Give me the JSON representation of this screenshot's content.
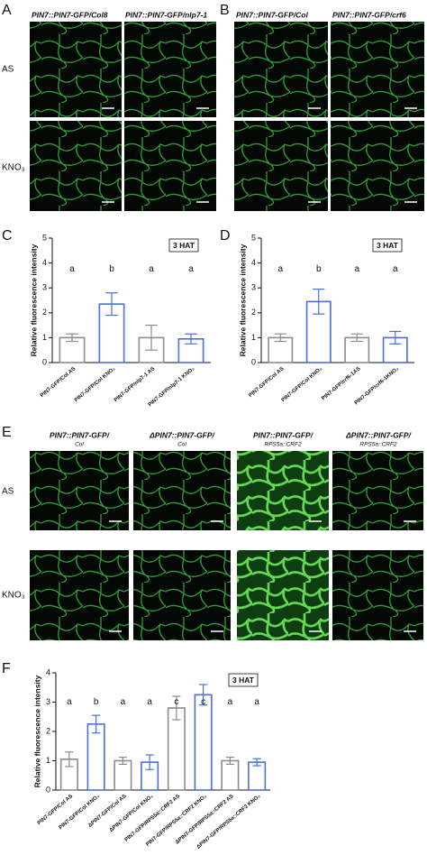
{
  "panels": {
    "A": {
      "label": "A",
      "columns": [
        "PIN7::PIN7-GFP/Col8",
        "PIN7::PIN7-GFP/nlp7-1"
      ],
      "rows": [
        "AS",
        "KNO₃"
      ]
    },
    "B": {
      "label": "B",
      "columns": [
        "PIN7::PIN7-GFP/Col",
        "PIN7::PIN7-GFP/crf6"
      ]
    },
    "C": {
      "label": "C"
    },
    "D": {
      "label": "D"
    },
    "E": {
      "label": "E",
      "columns": [
        {
          "title": "PIN7::PIN7-GFP/",
          "sub": "Col"
        },
        {
          "title": "ΔPIN7::PIN7-GFP/",
          "sub": "Col"
        },
        {
          "title": "PIN7::PIN7-GFP/",
          "sub": "RPS5a::CRF2"
        },
        {
          "title": "ΔPIN7::PIN7-GFP/",
          "sub": "RPS5a::CRF2"
        }
      ],
      "rows": [
        "AS",
        "KNO₃"
      ]
    },
    "F": {
      "label": "F"
    }
  },
  "chart_data": [
    {
      "type": "bar",
      "ylabel": "Relative fluorescence intensity",
      "annotation": "3 HAT",
      "categories": [
        "PIN7-GFP/Col AS",
        "PIN7-GFP/Col KNO₃",
        "PIN7-GFP/nlp7-1 AS",
        "PIN7-GFP/nlp7-1 KNO₃"
      ],
      "values": [
        1.0,
        2.35,
        1.0,
        0.95
      ],
      "errors": [
        0.15,
        0.45,
        0.5,
        0.2
      ],
      "letters": [
        "a",
        "b",
        "a",
        "a"
      ],
      "colors": [
        "#8c8c8c",
        "#4a6fd6",
        "#8c8c8c",
        "#4a6fd6"
      ],
      "ylim": [
        0,
        5
      ],
      "yticks": [
        0,
        1,
        2,
        3,
        4,
        5
      ]
    },
    {
      "type": "bar",
      "ylabel": "Relative fluorescence intensity",
      "annotation": "3 HAT",
      "categories": [
        "PIN7-GFP/Col AS",
        "PIN7-GFP/Col KNO₃",
        "PIN7-GFP/crf6-1AS",
        "PIN7-GFP/crf6-1KNO₃"
      ],
      "values": [
        1.0,
        2.45,
        1.0,
        1.0
      ],
      "errors": [
        0.15,
        0.5,
        0.15,
        0.25
      ],
      "letters": [
        "a",
        "b",
        "a",
        "a"
      ],
      "colors": [
        "#8c8c8c",
        "#4a6fd6",
        "#8c8c8c",
        "#4a6fd6"
      ],
      "ylim": [
        0,
        5
      ],
      "yticks": [
        0,
        1,
        2,
        3,
        4,
        5
      ]
    },
    {
      "type": "bar",
      "ylabel": "Relative fluorescence intensity",
      "annotation": "3 HAT",
      "categories": [
        "PIN7-GFP/Col AS",
        "PIN7-GFP/Col KNO₃",
        "ΔPIN7-GFP/Col AS",
        "ΔPIN7-GFP/Col KNO₃",
        "PIN7-GFP/RPS5a::CRF2 AS",
        "PIN7-GFP/RPS5a::CRF2 KNO₃",
        "ΔPIN7-GFP/RPS5a::CRF2 AS",
        "ΔPIN7-GFP/RPS5a::CRF2 KNO₃"
      ],
      "values": [
        1.05,
        2.25,
        1.0,
        0.95,
        2.8,
        3.25,
        1.0,
        0.95
      ],
      "errors": [
        0.25,
        0.3,
        0.12,
        0.25,
        0.4,
        0.35,
        0.12,
        0.12
      ],
      "letters": [
        "a",
        "b",
        "a",
        "a",
        "c",
        "c",
        "a",
        "a"
      ],
      "colors": [
        "#8c8c8c",
        "#4a6fd6",
        "#8c8c8c",
        "#4a6fd6",
        "#8c8c8c",
        "#4a6fd6",
        "#8c8c8c",
        "#4a6fd6"
      ],
      "ylim": [
        0,
        4
      ],
      "yticks": [
        0,
        1,
        2,
        3,
        4
      ]
    }
  ]
}
